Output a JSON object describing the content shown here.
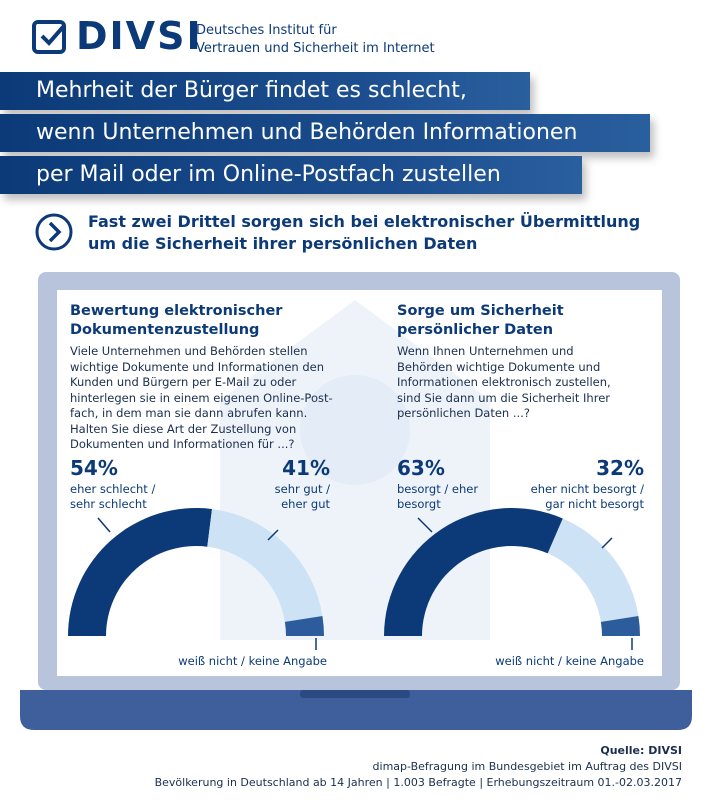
{
  "header": {
    "logo": "DIVSI",
    "org_line1": "Deutsches Institut für",
    "org_line2": "Vertrauen und Sicherheit im Internet"
  },
  "headline": [
    "Mehrheit der Bürger findet es schlecht,",
    "wenn Unternehmen und Behörden Informationen",
    "per Mail oder im Online-Postfach  zustellen"
  ],
  "subheadline": [
    "Fast zwei Drittel sorgen sich bei elektronischer Übermittlung",
    "um die Sicherheit ihrer persönlichen Daten"
  ],
  "chart_data": [
    {
      "type": "donut",
      "title": "Bewertung elektronischer Dokumentenzustellung",
      "subtitle": "Viele Unternehmen und Behörden stellen wichtige Dokumente und Informationen den Kunden und Bürgern per E-Mail zu oder hinterlegen sie in einem eigenen Online-Post-fach, in dem man sie dann abrufen kann. Halten Sie diese Art der Zustellung von Dokumenten und Informationen für ...?",
      "categories": [
        "eher schlecht / sehr schlecht",
        "sehr gut / eher gut",
        "weiß nicht / keine Angabe"
      ],
      "values": [
        54,
        41,
        5
      ],
      "value_labels": [
        "54%",
        "41%",
        null
      ],
      "colors": [
        "#0c3a78",
        "#cde2f4",
        "#2d5c9c"
      ]
    },
    {
      "type": "donut",
      "title": "Sorge um Sicherheit persönlicher Daten",
      "subtitle": "Wenn Ihnen Unternehmen und Behörden wichtige Dokumente und Informationen elektronisch zustellen, sind Sie dann um die Sicherheit Ihrer persönlichen Daten ...?",
      "categories": [
        "besorgt / eher besorgt",
        "eher nicht besorgt / gar nicht besorgt",
        "weiß nicht / keine Angabe"
      ],
      "values": [
        63,
        32,
        5
      ],
      "value_labels": [
        "63%",
        "32%",
        null
      ],
      "colors": [
        "#0c3a78",
        "#cde2f4",
        "#2d5c9c"
      ]
    }
  ],
  "source": {
    "label": "Quelle: DIVSI",
    "line1": "dimap-Befragung im Bundesgebiet im Auftrag des DIVSI",
    "line2": "Bevölkerung in Deutschland ab 14 Jahren  | 1.003 Befragte | Erhebungszeitraum 01.-02.03.2017"
  }
}
